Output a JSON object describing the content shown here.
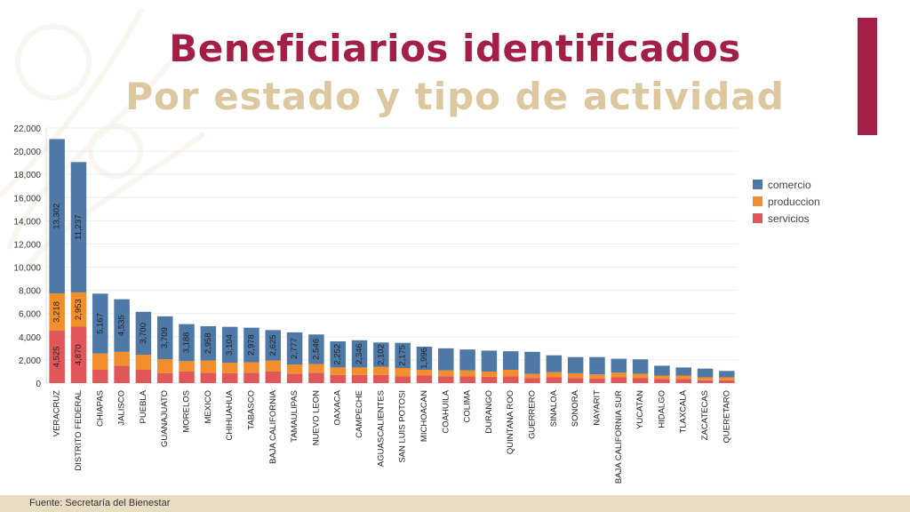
{
  "title": "Beneficiarios identificados",
  "subtitle": "Por estado y tipo de actividad",
  "footer": "Fuente: Secretaría del Bienestar",
  "colors": {
    "title": "#a31f45",
    "subtitle": "#dcc79f",
    "accent": "#a31f45",
    "comercio": "#4e79a7",
    "produccion": "#f28e2b",
    "servicios": "#e15759"
  },
  "chart_data": {
    "type": "bar",
    "stacked": true,
    "categories": [
      "VERACRUZ",
      "DISTRITO FEDERAL",
      "CHIAPAS",
      "JALISCO",
      "PUEBLA",
      "GUANAJUATO",
      "MORELOS",
      "MEXICO",
      "CHIHUAHUA",
      "TABASCO",
      "BAJA CALIFORNIA",
      "TAMAULIPAS",
      "NUEVO LEON",
      "OAXACA",
      "CAMPECHE",
      "AGUASCALIENTES",
      "SAN LUIS POTOSI",
      "MICHOACAN",
      "COAHUILA",
      "COLIMA",
      "DURANGO",
      "QUINTANA ROO",
      "GUERRERO",
      "SINALOA",
      "SONORA",
      "NAYARIT",
      "BAJA CALIFORNIA SUR",
      "YUCATAN",
      "HIDALGO",
      "TLAXCALA",
      "ZACATECAS",
      "QUERETARO"
    ],
    "series": [
      {
        "name": "servicios",
        "values": [
          4525,
          4870,
          1150,
          1500,
          1150,
          850,
          1000,
          900,
          850,
          900,
          1000,
          800,
          900,
          700,
          700,
          700,
          600,
          650,
          600,
          600,
          550,
          600,
          450,
          500,
          450,
          400,
          500,
          450,
          350,
          350,
          250,
          250
        ]
      },
      {
        "name": "produccion",
        "values": [
          3218,
          2953,
          1400,
          1200,
          1300,
          1200,
          900,
          1050,
          900,
          900,
          950,
          800,
          750,
          650,
          650,
          700,
          700,
          500,
          500,
          500,
          450,
          550,
          350,
          450,
          400,
          350,
          400,
          350,
          300,
          300,
          250,
          250
        ]
      },
      {
        "name": "comercio",
        "values": [
          13302,
          11237,
          5167,
          4535,
          3700,
          3709,
          3188,
          2958,
          3104,
          2978,
          2625,
          2777,
          2546,
          2252,
          2346,
          2102,
          2175,
          1996,
          1900,
          1800,
          1800,
          1600,
          1900,
          1450,
          1400,
          1500,
          1200,
          1250,
          850,
          700,
          750,
          550
        ]
      }
    ],
    "labels": {
      "comercio": [
        "13,302",
        "11,237",
        "5,167",
        "4,535",
        "3,700",
        "3,709",
        "3,188",
        "2,958",
        "3,104",
        "2,978",
        "2,625",
        "2,777",
        "2,546",
        "2,252",
        "2,346",
        "2,102",
        "2,175",
        "1,996"
      ],
      "produccion": [
        "3,218",
        "2,953"
      ],
      "servicios": [
        "4,525",
        "4,870"
      ]
    },
    "yticks": [
      0,
      2000,
      4000,
      6000,
      8000,
      10000,
      12000,
      14000,
      16000,
      18000,
      20000,
      22000
    ],
    "ytick_labels": [
      "0",
      "2,000",
      "4,000",
      "6,000",
      "8,000",
      "10,000",
      "12,000",
      "14,000",
      "16,000",
      "18,000",
      "20,000",
      "22,000"
    ],
    "ylim": [
      0,
      22000
    ],
    "legend": [
      {
        "name": "comercio",
        "label": "comercio"
      },
      {
        "name": "produccion",
        "label": "produccion"
      },
      {
        "name": "servicios",
        "label": "servicios"
      }
    ],
    "legend_position": "right"
  }
}
